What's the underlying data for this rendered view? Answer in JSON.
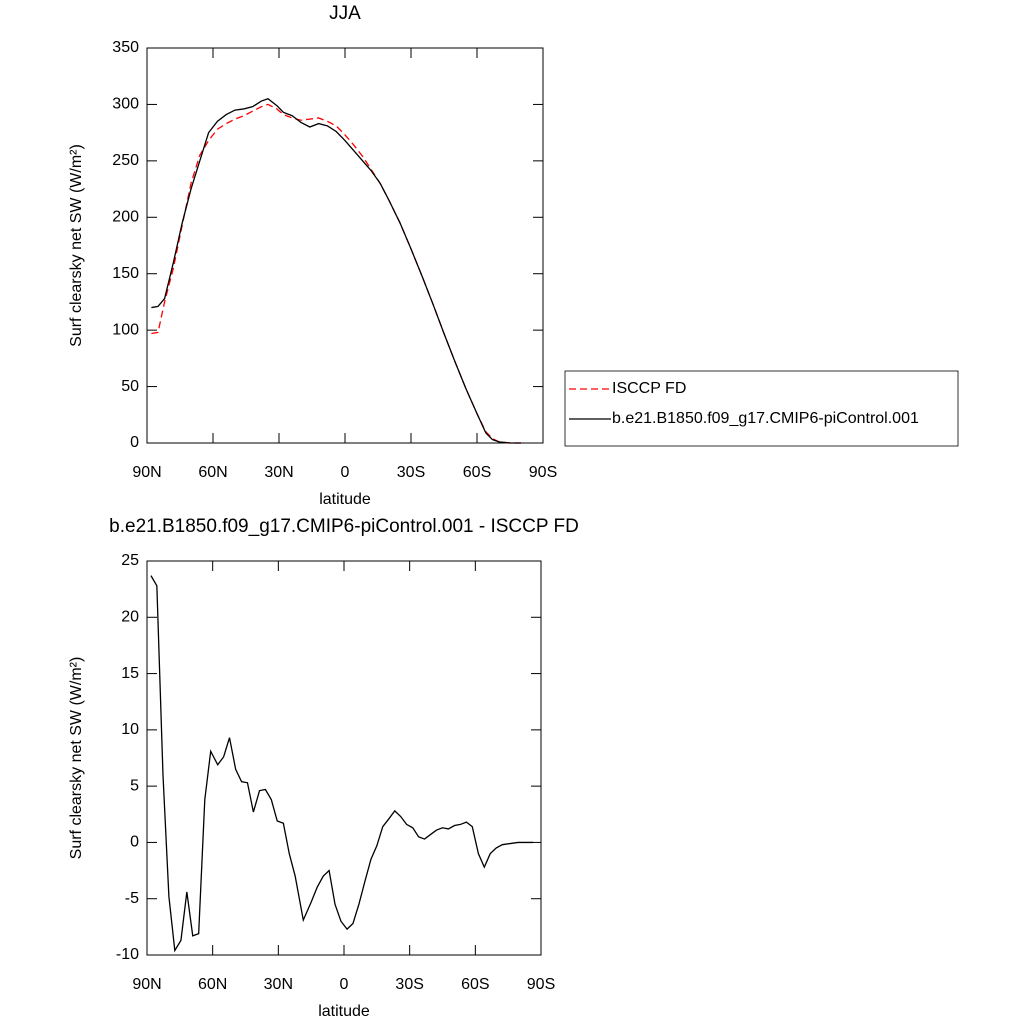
{
  "chart_data": [
    {
      "type": "line",
      "title": "JJA",
      "xlabel": "latitude",
      "ylabel": "Surf clearsky net SW (W/m²)",
      "xlim": [
        90,
        -90
      ],
      "xticks": [
        {
          "value": 90,
          "label": "90N"
        },
        {
          "value": 60,
          "label": "60N"
        },
        {
          "value": 30,
          "label": "30N"
        },
        0,
        {
          "value": -30,
          "label": "30S"
        },
        {
          "value": -60,
          "label": "60S"
        },
        {
          "value": -90,
          "label": "90S"
        }
      ],
      "ylim": [
        0,
        350
      ],
      "yticks": [
        0,
        50,
        100,
        150,
        200,
        250,
        300,
        350
      ],
      "legend": "right",
      "x": [
        88,
        85,
        82,
        78,
        74,
        70,
        66,
        62,
        58,
        54,
        50,
        46,
        42,
        38,
        35,
        31,
        28,
        24,
        20,
        16,
        12,
        8,
        4,
        0,
        -4,
        -8,
        -12,
        -16,
        -20,
        -25,
        -30,
        -35,
        -40,
        -45,
        -50,
        -55,
        -60,
        -64,
        -67,
        -70,
        -75,
        -80
      ],
      "series": [
        {
          "name": "ISCCP FD",
          "color": "#ff0000",
          "dashed": true,
          "values": [
            97,
            98,
            125,
            155,
            193,
            230,
            255,
            268,
            278,
            283,
            287,
            290,
            294,
            298,
            300,
            296,
            291,
            288,
            286,
            287,
            288,
            285,
            281,
            273,
            264,
            254,
            242,
            230,
            215,
            195,
            172,
            148,
            123,
            97,
            72,
            48,
            26,
            10,
            4,
            1,
            0,
            0
          ]
        },
        {
          "name": "b.e21.B1850.f09_g17.CMIP6-piControl.001",
          "color": "#000000",
          "dashed": false,
          "values": [
            120,
            121,
            128,
            160,
            195,
            225,
            250,
            275,
            285,
            291,
            295,
            296,
            298,
            303,
            305,
            299,
            293,
            290,
            284,
            280,
            283,
            281,
            276,
            268,
            259,
            250,
            241,
            230,
            215,
            195,
            172,
            148,
            123,
            97,
            72,
            48,
            26,
            9,
            3,
            1,
            0,
            0
          ]
        }
      ]
    },
    {
      "type": "line",
      "title": "b.e21.B1850.f09_g17.CMIP6-piControl.001 - ISCCP FD",
      "xlabel": "latitude",
      "ylabel": "Surf clearsky net SW (W/m²)",
      "xlim": [
        90,
        -90
      ],
      "xticks": [
        {
          "value": 90,
          "label": "90N"
        },
        {
          "value": 60,
          "label": "60N"
        },
        {
          "value": 30,
          "label": "30N"
        },
        0,
        {
          "value": -30,
          "label": "30S"
        },
        {
          "value": -60,
          "label": "60S"
        },
        {
          "value": -90,
          "label": "90S"
        }
      ],
      "ylim": [
        -10,
        25
      ],
      "yticks": [
        -10,
        -5,
        0,
        5,
        10,
        15,
        20,
        25
      ],
      "x": [
        88.2,
        85.5,
        82.7,
        80.0,
        77.3,
        74.5,
        71.8,
        69.1,
        66.4,
        63.6,
        60.9,
        57.7,
        55.0,
        52.3,
        49.5,
        46.8,
        44.1,
        41.4,
        38.6,
        35.9,
        33.2,
        30.5,
        27.7,
        25.0,
        22.3,
        18.6,
        15.0,
        12.3,
        9.5,
        6.8,
        4.1,
        1.4,
        -1.4,
        -4.1,
        -6.8,
        -9.5,
        -12.3,
        -15.0,
        -17.7,
        -20.5,
        -23.2,
        -25.9,
        -28.6,
        -31.4,
        -34.1,
        -36.8,
        -39.5,
        -42.3,
        -45.0,
        -47.7,
        -50.5,
        -53.2,
        -55.9,
        -58.6,
        -61.4,
        -64.1,
        -66.8,
        -69.5,
        -72.3,
        -75.9,
        -79.5,
        -86.4
      ],
      "series": [
        {
          "name": "b.e21.B1850.f09_g17.CMIP6-piControl.001 - ISCCP FD",
          "color": "#000000",
          "dashed": false,
          "values": [
            23.7,
            22.8,
            6,
            -4.8,
            -9.6,
            -8.7,
            -4.4,
            -8.3,
            -8.1,
            3.8,
            8.1,
            6.9,
            7.6,
            9.3,
            6.5,
            5.4,
            5.3,
            2.7,
            4.6,
            4.7,
            3.8,
            1.9,
            1.7,
            -1,
            -3,
            -6.9,
            -5.3,
            -4,
            -3,
            -2.5,
            -5.5,
            -7,
            -7.7,
            -7.2,
            -5.5,
            -3.5,
            -1.5,
            -0.3,
            1.4,
            2.1,
            2.8,
            2.3,
            1.6,
            1.3,
            0.5,
            0.3,
            0.7,
            1.1,
            1.3,
            1.2,
            1.5,
            1.6,
            1.8,
            1.4,
            -1,
            -2.2,
            -1,
            -0.5,
            -0.2,
            -0.1,
            0,
            0
          ]
        }
      ]
    }
  ]
}
